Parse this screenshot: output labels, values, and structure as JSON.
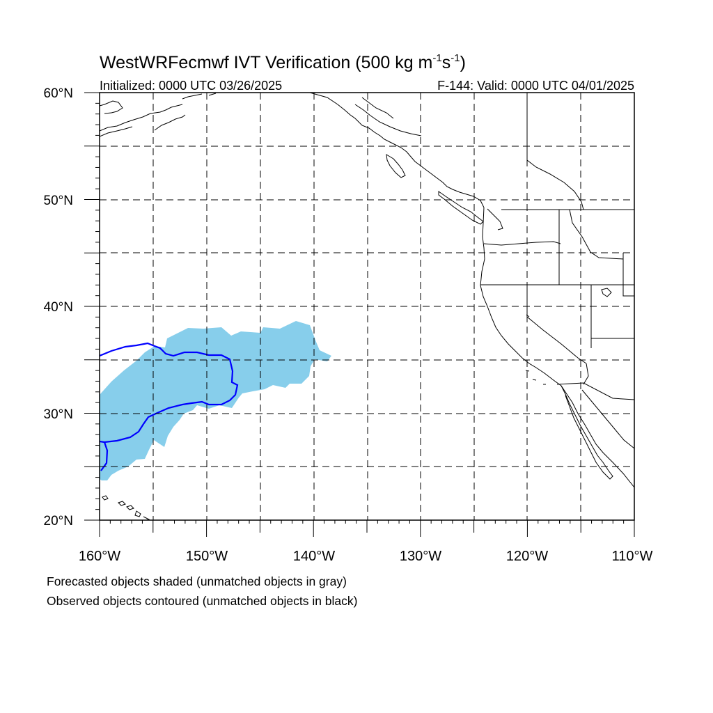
{
  "title": {
    "main": "WestWRFecmwf IVT Verification (500 kg m",
    "exp1": "-1",
    "mid": "s",
    "exp2": "-1",
    "end": ")"
  },
  "initialized": "Initialized: 0000 UTC 03/26/2025",
  "valid": "F-144: Valid: 0000 UTC 04/01/2025",
  "lat_labels": [
    "60°N",
    "50°N",
    "40°N",
    "30°N",
    "20°N"
  ],
  "lon_labels": [
    "160°W",
    "150°W",
    "140°W",
    "130°W",
    "120°W",
    "110°W"
  ],
  "footnotes": [
    "Forecasted objects shaded (unmatched objects in gray)",
    "Observed objects contoured (unmatched objects in black)"
  ],
  "map": {
    "lon_range": [
      -160,
      -110
    ],
    "lat_range": [
      20,
      60
    ],
    "forecast_object_color": "#87CEEB",
    "observed_contour_color": "#0000FF",
    "grid": "dashed, every 5 degrees"
  }
}
